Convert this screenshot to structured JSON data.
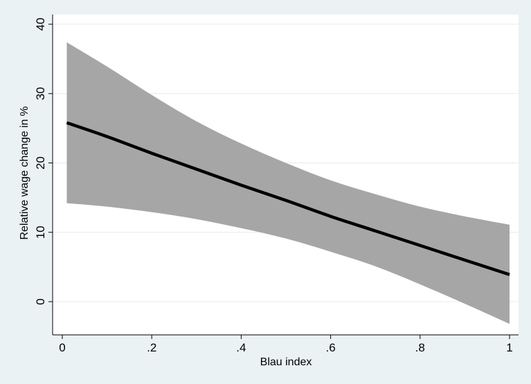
{
  "chart_data": {
    "type": "line",
    "title": "",
    "xlabel": "Blau index",
    "ylabel": "Relative wage change in %",
    "xlim": [
      0,
      1
    ],
    "ylim": [
      -5,
      40
    ],
    "x_ticks": [
      {
        "value": 0,
        "label": "0"
      },
      {
        "value": 0.2,
        "label": ".2"
      },
      {
        "value": 0.4,
        "label": ".4"
      },
      {
        "value": 0.6,
        "label": ".6"
      },
      {
        "value": 0.8,
        "label": ".8"
      },
      {
        "value": 1,
        "label": "1"
      }
    ],
    "y_ticks": [
      {
        "value": 0,
        "label": "0"
      },
      {
        "value": 10,
        "label": "10"
      },
      {
        "value": 20,
        "label": "20"
      },
      {
        "value": 30,
        "label": "30"
      },
      {
        "value": 40,
        "label": "40"
      }
    ],
    "grid": true,
    "legend": "none",
    "series": [
      {
        "x": [
          0.01,
          0.1,
          0.2,
          0.3,
          0.4,
          0.5,
          0.6,
          0.7,
          0.8,
          0.9,
          1.0
        ],
        "y": [
          25.8,
          23.8,
          21.4,
          19.1,
          16.8,
          14.6,
          12.3,
          10.2,
          8.1,
          6.0,
          3.9
        ],
        "ci_lower": [
          14.2,
          13.7,
          12.9,
          11.9,
          10.6,
          9.1,
          7.2,
          5.1,
          2.5,
          -0.3,
          -3.2
        ],
        "ci_upper": [
          37.4,
          33.9,
          29.8,
          26.0,
          22.8,
          20.0,
          17.5,
          15.5,
          13.7,
          12.3,
          11.1
        ]
      }
    ],
    "colors": {
      "line": "#000000",
      "band": "#a6a6a6",
      "plot_background": "#ffffff",
      "grid": "#e4ecee",
      "outer_background": "#eaf2f3"
    }
  }
}
